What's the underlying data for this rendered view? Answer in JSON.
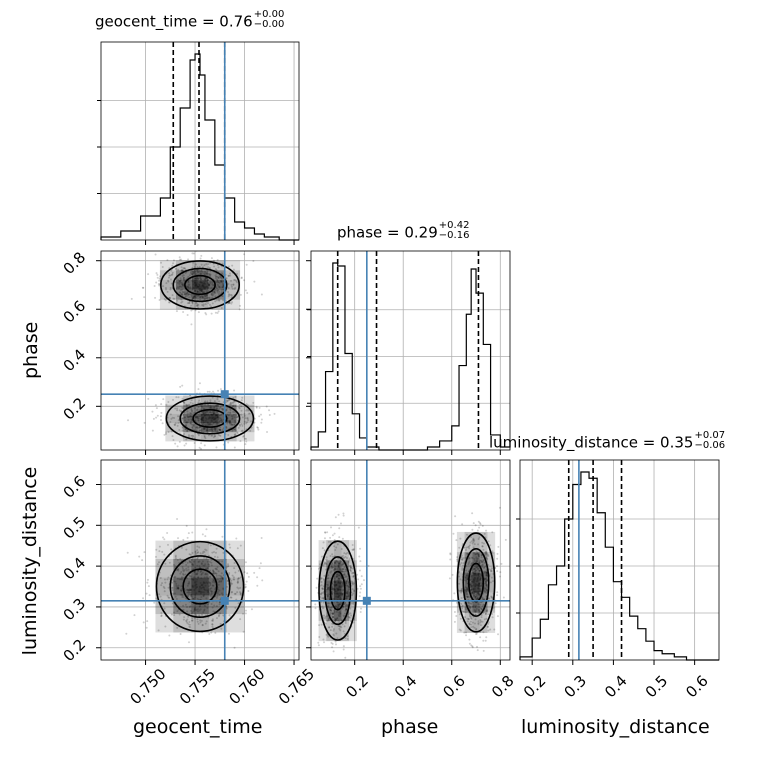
{
  "chart_data": {
    "type": "corner",
    "parameters": [
      "geocent_time",
      "phase",
      "luminosity_distance"
    ],
    "truth": {
      "geocent_time": 0.758,
      "phase": 0.25,
      "luminosity_distance": 0.315
    },
    "titles": [
      {
        "param": "geocent_time",
        "text": "geocent_time = 0.76",
        "plus": "+0.00",
        "minus": "−0.00"
      },
      {
        "param": "phase",
        "text": "phase = 0.29",
        "plus": "+0.42",
        "minus": "−0.16"
      },
      {
        "param": "luminosity_distance",
        "text": "luminosity_distance = 0.35",
        "plus": "+0.07",
        "minus": "−0.06"
      }
    ],
    "axis_labels": {
      "geocent_time": "geocent_time",
      "phase": "phase",
      "luminosity_distance": "luminosity_distance"
    },
    "ranges": {
      "geocent_time": [
        0.7455,
        0.7655
      ],
      "phase": [
        0.02,
        0.84
      ],
      "luminosity_distance": [
        0.17,
        0.66
      ]
    },
    "ticks": {
      "geocent_time": [
        "0.750",
        "0.755",
        "0.760",
        "0.765"
      ],
      "phase_y": [
        "0.2",
        "0.4",
        "0.6",
        "0.8"
      ],
      "phase_x": [
        "0.2",
        "0.4",
        "0.6",
        "0.8"
      ],
      "luminosity_distance_y": [
        "0.2",
        "0.3",
        "0.4",
        "0.5",
        "0.6"
      ],
      "luminosity_distance_x": [
        "0.2",
        "0.3",
        "0.4",
        "0.5",
        "0.6"
      ]
    },
    "quantile_lines": {
      "geocent_time": [
        0.7528,
        0.7554,
        0.758
      ],
      "phase": [
        0.13,
        0.29,
        0.71
      ],
      "luminosity_distance": [
        0.29,
        0.35,
        0.42
      ]
    },
    "hist_1d": {
      "geocent_time": {
        "edges": [
          0.7455,
          0.7475,
          0.7495,
          0.7515,
          0.7525,
          0.7535,
          0.7545,
          0.755,
          0.7555,
          0.756,
          0.757,
          0.758,
          0.759,
          0.76,
          0.761,
          0.762,
          0.7635,
          0.7655
        ],
        "counts": [
          1,
          3,
          8,
          14,
          31,
          44,
          60,
          62,
          55,
          40,
          25,
          14,
          6,
          4,
          2,
          1,
          0
        ]
      },
      "phase": {
        "edges": [
          0.02,
          0.05,
          0.08,
          0.11,
          0.13,
          0.16,
          0.19,
          0.22,
          0.25,
          0.3,
          0.4,
          0.5,
          0.55,
          0.6,
          0.63,
          0.66,
          0.68,
          0.7,
          0.73,
          0.76,
          0.8,
          0.84
        ],
        "counts": [
          1,
          6,
          26,
          62,
          61,
          32,
          12,
          4,
          1,
          0,
          0,
          1,
          3,
          8,
          28,
          45,
          60,
          52,
          35,
          5,
          1
        ]
      },
      "luminosity_distance": {
        "edges": [
          0.17,
          0.2,
          0.22,
          0.24,
          0.26,
          0.28,
          0.3,
          0.32,
          0.34,
          0.36,
          0.38,
          0.4,
          0.42,
          0.44,
          0.46,
          0.48,
          0.5,
          0.52,
          0.55,
          0.58,
          0.62,
          0.66
        ],
        "counts": [
          1,
          7,
          13,
          24,
          30,
          45,
          56,
          60,
          58,
          47,
          36,
          25,
          20,
          14,
          10,
          6,
          3,
          2,
          1,
          0,
          0
        ]
      }
    },
    "modes_2d": {
      "phase_vs_geocent_time": [
        {
          "x": 0.7555,
          "y": 0.7,
          "sx": 0.0018,
          "sy": 0.045
        },
        {
          "x": 0.7565,
          "y": 0.15,
          "sx": 0.002,
          "sy": 0.042
        }
      ],
      "luminosity_distance_vs_geocent_time": [
        {
          "x": 0.7555,
          "y": 0.35,
          "sx": 0.002,
          "sy": 0.05
        }
      ],
      "luminosity_distance_vs_phase": [
        {
          "x": 0.13,
          "y": 0.34,
          "sx": 0.035,
          "sy": 0.055
        },
        {
          "x": 0.7,
          "y": 0.36,
          "sx": 0.035,
          "sy": 0.055
        }
      ]
    },
    "grid": true
  },
  "colors": {
    "truth": "#4682b4",
    "hist": "#000000",
    "grid": "#b0b0b0"
  }
}
